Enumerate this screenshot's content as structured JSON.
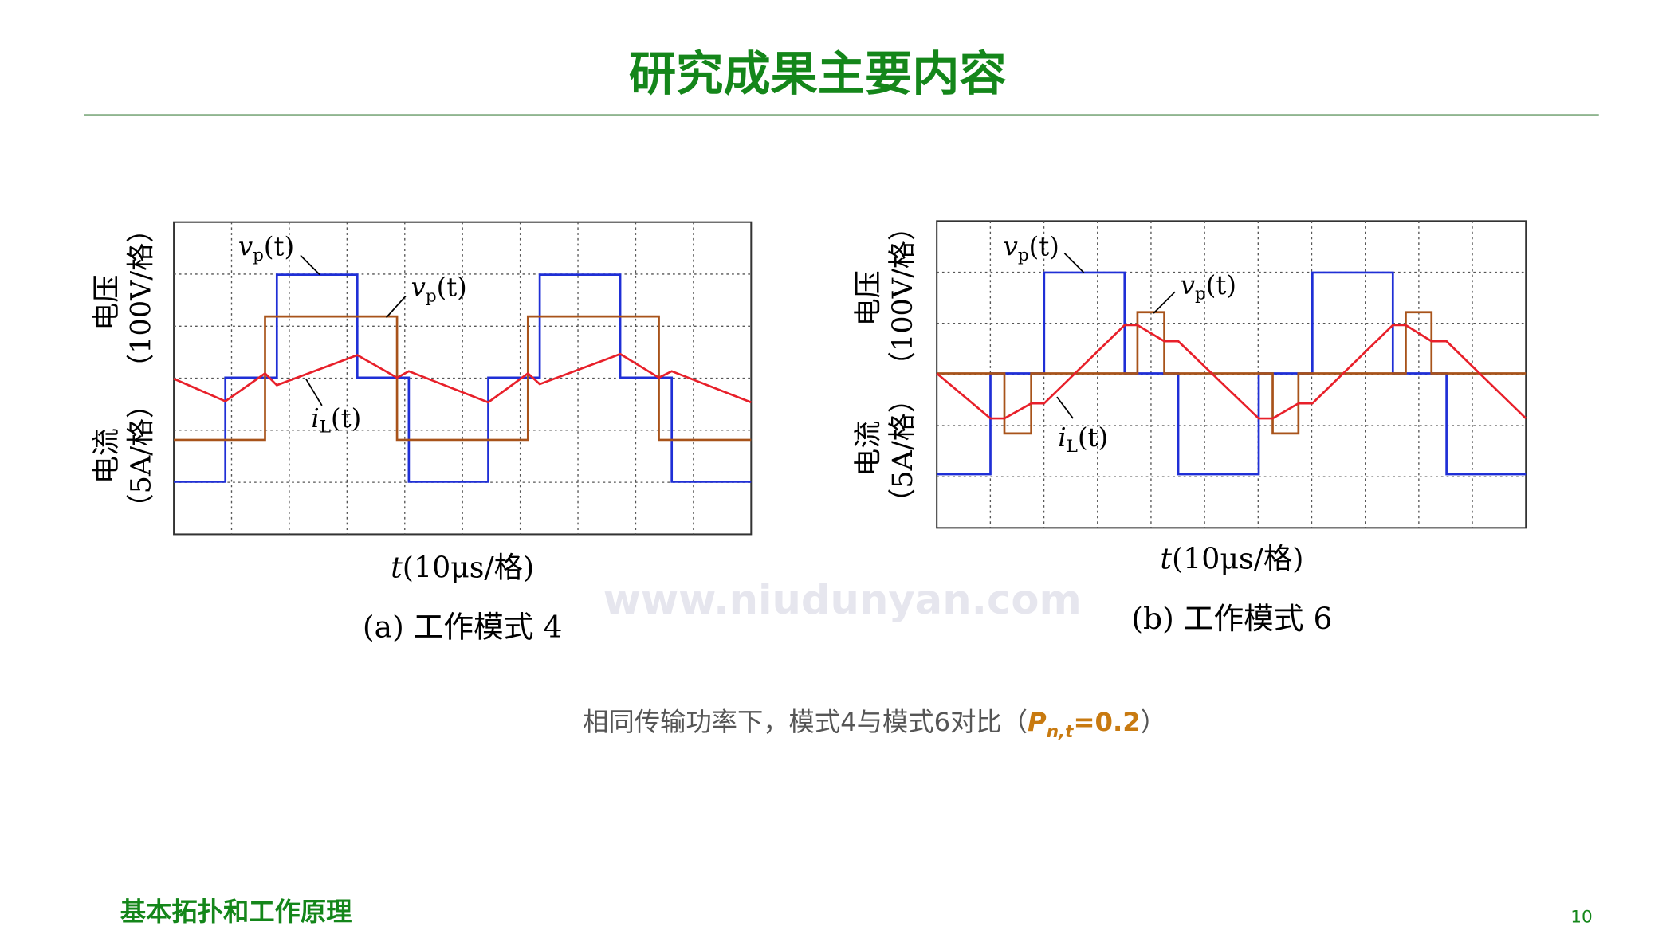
{
  "header": {
    "title": "研究成果主要内容"
  },
  "figures": [
    {
      "labels": [
        {
          "main": "v",
          "sub": "p",
          "rest": "(t)"
        },
        {
          "main": "v",
          "sub": "p",
          "rest": "(t)"
        },
        {
          "main": "i",
          "sub": "L",
          "rest": "(t)"
        }
      ],
      "ylabel": {
        "voltage": "电压",
        "voltage_unit": "（100V/格）",
        "current": "电流",
        "current_unit": "（5A/格）"
      },
      "xlabel": {
        "var": "t",
        "unit": "(10μs/格)"
      },
      "caption": "(a)  工作模式 4"
    },
    {
      "labels": [
        {
          "main": "v",
          "sub": "p",
          "rest": "(t)"
        },
        {
          "main": "v",
          "sub": "p",
          "rest": "(t)"
        },
        {
          "main": "i",
          "sub": "L",
          "rest": "(t)"
        }
      ],
      "ylabel": {
        "voltage": "电压",
        "voltage_unit": "（100V/格）",
        "current": "电流",
        "current_unit": "（5A/格）"
      },
      "xlabel": {
        "var": "t",
        "unit": "(10μs/格)"
      },
      "caption": "(b)  工作模式 6"
    }
  ],
  "watermark": "www.niudunyan.com",
  "note": {
    "text": "相同传输功率下，模式4与模式6对比（",
    "symbol": "P",
    "subscript": "n,t",
    "value": "=0.2",
    "close": "）"
  },
  "footer": {
    "section": "基本拓扑和工作原理",
    "page": "10"
  }
}
